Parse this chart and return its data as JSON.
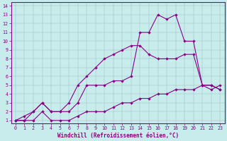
{
  "bg_color": "#c8ecec",
  "line_color": "#880088",
  "xlabel": "Windchill (Refroidissement éolien,°C)",
  "xlim_min": -0.5,
  "xlim_max": 23.5,
  "ylim_min": 0.7,
  "ylim_max": 14.4,
  "xticks": [
    0,
    1,
    2,
    3,
    4,
    5,
    6,
    7,
    8,
    9,
    10,
    11,
    12,
    13,
    14,
    15,
    16,
    17,
    18,
    19,
    20,
    21,
    22,
    23
  ],
  "yticks": [
    1,
    2,
    3,
    4,
    5,
    6,
    7,
    8,
    9,
    10,
    11,
    12,
    13,
    14
  ],
  "line1_x": [
    0,
    1,
    2,
    3,
    4,
    5,
    6,
    7,
    8,
    9,
    10,
    11,
    12,
    13,
    14,
    15,
    16,
    17,
    18,
    19,
    20,
    21,
    22,
    23
  ],
  "line1_y": [
    1,
    1,
    2,
    3,
    2,
    2,
    3,
    5,
    6,
    7,
    8,
    8.5,
    9,
    9.5,
    9.5,
    8.5,
    8,
    8,
    8,
    8.5,
    8.5,
    5,
    4.5,
    5
  ],
  "line2_x": [
    0,
    1,
    2,
    3,
    4,
    5,
    6,
    7,
    8,
    9,
    10,
    11,
    12,
    13,
    14,
    15,
    16,
    17,
    18,
    19,
    20,
    21,
    22,
    23
  ],
  "line2_y": [
    1,
    1.5,
    2,
    3,
    2,
    2,
    2,
    3,
    5,
    5,
    5,
    5.5,
    5.5,
    6,
    11,
    11,
    13,
    12.5,
    13,
    10,
    10,
    5,
    5,
    4.5
  ],
  "line3_x": [
    0,
    1,
    2,
    3,
    4,
    5,
    6,
    7,
    8,
    9,
    10,
    11,
    12,
    13,
    14,
    15,
    16,
    17,
    18,
    19,
    20,
    21,
    22,
    23
  ],
  "line3_y": [
    1,
    1,
    1,
    2,
    1,
    1,
    1,
    1.5,
    2,
    2,
    2,
    2.5,
    3,
    3,
    3.5,
    3.5,
    4,
    4,
    4.5,
    4.5,
    4.5,
    5,
    5,
    4.5
  ]
}
